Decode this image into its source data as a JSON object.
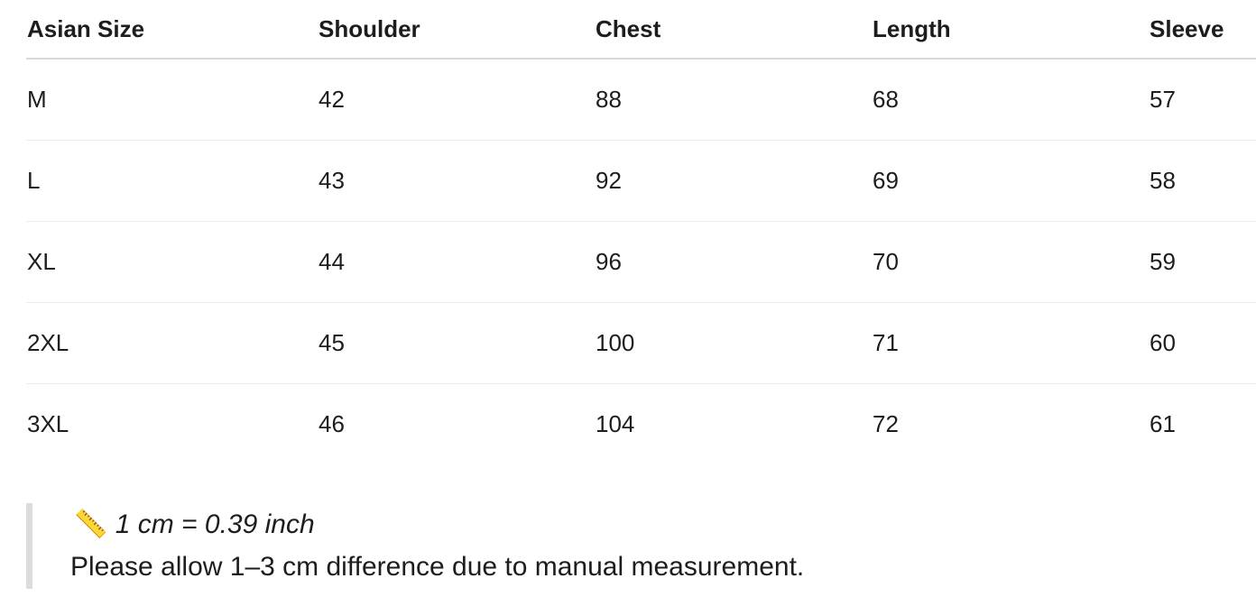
{
  "table": {
    "headers": [
      "Asian Size",
      "Shoulder",
      "Chest",
      "Length",
      "Sleeve"
    ],
    "rows": [
      [
        "M",
        42,
        88,
        68,
        57
      ],
      [
        "L",
        43,
        92,
        69,
        58
      ],
      [
        "XL",
        44,
        96,
        70,
        59
      ],
      [
        "2XL",
        45,
        100,
        71,
        60
      ],
      [
        "3XL",
        46,
        104,
        72,
        61
      ]
    ]
  },
  "note": {
    "icon": "📏",
    "conversion": "1 cm = 0.39 inch",
    "text": "Please allow 1–3 cm difference due to manual measurement."
  }
}
